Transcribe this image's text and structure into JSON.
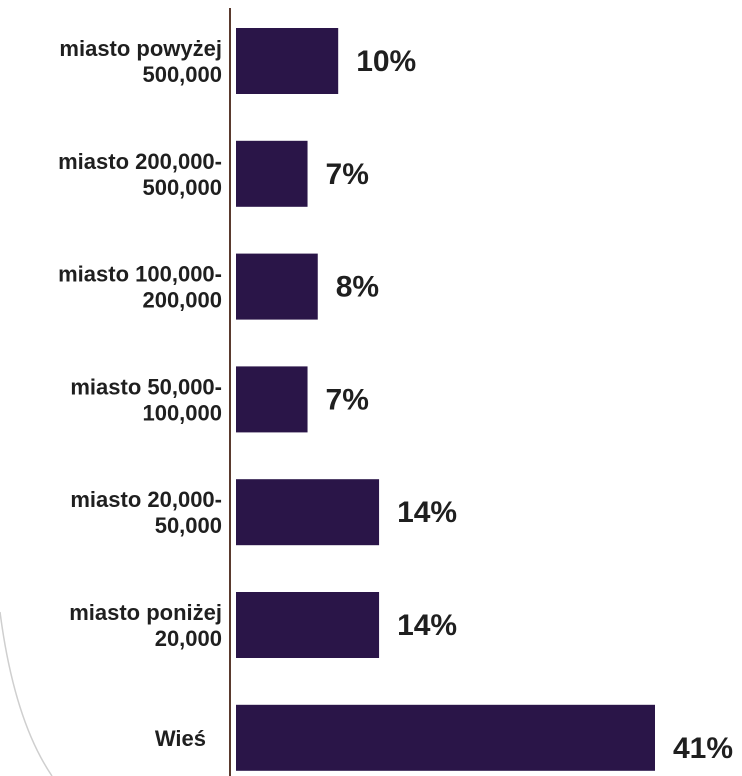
{
  "chart_data": {
    "type": "bar",
    "orientation": "horizontal",
    "categories": [
      [
        "miasto powyżej",
        "500,000"
      ],
      [
        "miasto 200,000-",
        "500,000"
      ],
      [
        "miasto 100,000-",
        "200,000"
      ],
      [
        "miasto 50,000-",
        "100,000"
      ],
      [
        "miasto 20,000-",
        "50,000"
      ],
      [
        "miasto poniżej",
        "20,000"
      ],
      [
        "Wieś"
      ]
    ],
    "values": [
      10,
      7,
      8,
      7,
      14,
      14,
      41
    ],
    "data_labels": [
      "10%",
      "7%",
      "8%",
      "7%",
      "14%",
      "14%",
      "41%"
    ],
    "value_unit": "%",
    "xlim": [
      0,
      41
    ],
    "grid": false,
    "legend": "none",
    "colors": {
      "bar": "#2a1548",
      "axis": "#5a3a2e",
      "text": "#1f1f1f",
      "decor_arc": "#cfcfcf"
    }
  }
}
